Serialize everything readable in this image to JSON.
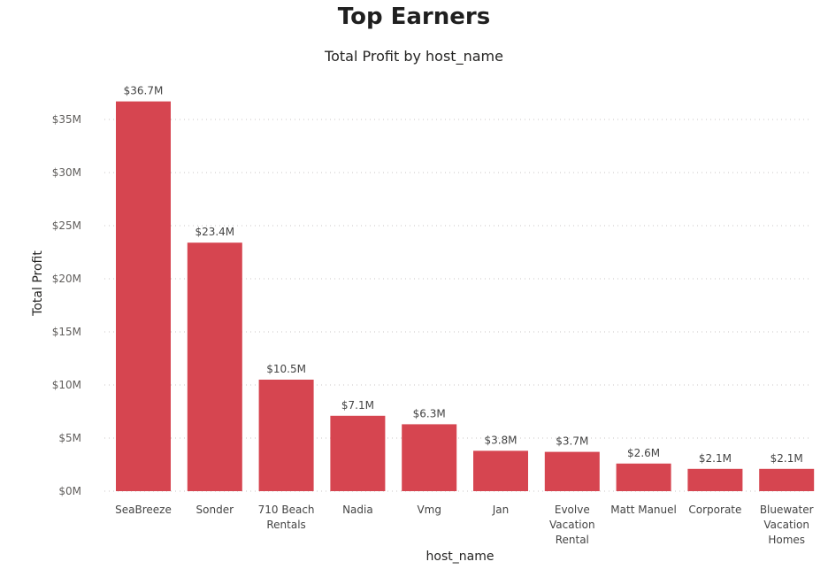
{
  "page": {
    "title": "Top Earners"
  },
  "chart_data": {
    "type": "bar",
    "title": "Total Profit by host_name",
    "xlabel": "host_name",
    "ylabel": "Total Profit",
    "categories": [
      "SeaBreeze",
      "Sonder",
      "710 Beach Rentals",
      "Nadia",
      "Vmg",
      "Jan",
      "Evolve Vacation Rental",
      "Matt Manuel",
      "Corporate",
      "Bluewater Vacation Homes"
    ],
    "category_lines": [
      [
        "SeaBreeze"
      ],
      [
        "Sonder"
      ],
      [
        "710 Beach",
        "Rentals"
      ],
      [
        "Nadia"
      ],
      [
        "Vmg"
      ],
      [
        "Jan"
      ],
      [
        "Evolve",
        "Vacation",
        "Rental"
      ],
      [
        "Matt Manuel"
      ],
      [
        "Corporate"
      ],
      [
        "Bluewater",
        "Vacation",
        "Homes"
      ]
    ],
    "values": [
      36.7,
      23.4,
      10.5,
      7.1,
      6.3,
      3.8,
      3.7,
      2.6,
      2.1,
      2.1
    ],
    "value_labels": [
      "$36.7M",
      "$23.4M",
      "$10.5M",
      "$7.1M",
      "$6.3M",
      "$3.8M",
      "$3.7M",
      "$2.6M",
      "$2.1M",
      "$2.1M"
    ],
    "unit": "$M",
    "ylim": [
      0,
      38
    ],
    "yticks": [
      0,
      5,
      10,
      15,
      20,
      25,
      30,
      35
    ],
    "ytick_labels": [
      "$0M",
      "$5M",
      "$10M",
      "$15M",
      "$20M",
      "$25M",
      "$30M",
      "$35M"
    ],
    "grid": true,
    "legend": "none",
    "bar_color": "#D64550"
  }
}
